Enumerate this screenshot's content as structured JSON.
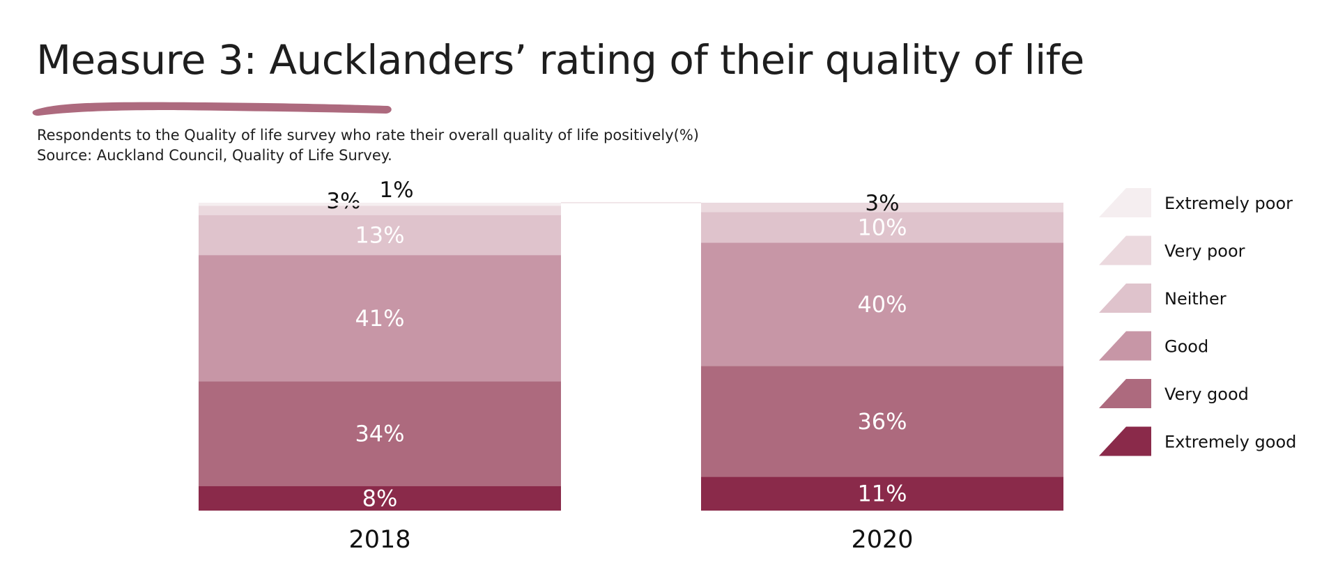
{
  "header": {
    "title": "Measure 3: Aucklanders’ rating of their quality of life",
    "subtitle": "Respondents to the Quality of life survey who rate their overall quality of life positively(%)",
    "source": "Source: Auckland Council, Quality of Life Survey."
  },
  "colors": {
    "accent": "#a96a7d",
    "Extremely good": "#8a2a4a",
    "Very good": "#ad6a7e",
    "Good": "#c796a6",
    "Neither": "#dfc3cc",
    "Very poor": "#ebd9de",
    "Extremely poor": "#f5eef0"
  },
  "chart_data": {
    "type": "bar",
    "stacked": true,
    "categories": [
      "2018",
      "2020"
    ],
    "series": [
      {
        "name": "Extremely good",
        "values": [
          8,
          11
        ],
        "labels": [
          "8%",
          "11%"
        ]
      },
      {
        "name": "Very good",
        "values": [
          34,
          36
        ],
        "labels": [
          "34%",
          "36%"
        ]
      },
      {
        "name": "Good",
        "values": [
          41,
          40
        ],
        "labels": [
          "41%",
          "40%"
        ]
      },
      {
        "name": "Neither",
        "values": [
          13,
          10
        ],
        "labels": [
          "13%",
          "10%"
        ]
      },
      {
        "name": "Very poor",
        "values": [
          3,
          3
        ],
        "labels": [
          "3%",
          "3%"
        ]
      },
      {
        "name": "Extremely poor",
        "values": [
          1,
          0
        ],
        "labels": [
          "1%",
          ""
        ]
      }
    ],
    "legend": [
      "Extremely poor",
      "Very poor",
      "Neither",
      "Good",
      "Very good",
      "Extremely good"
    ],
    "legend_position": "right",
    "ylim": [
      0,
      100
    ],
    "title": "Measure 3: Aucklanders’ rating of their quality of life",
    "xlabel": "",
    "ylabel": ""
  }
}
